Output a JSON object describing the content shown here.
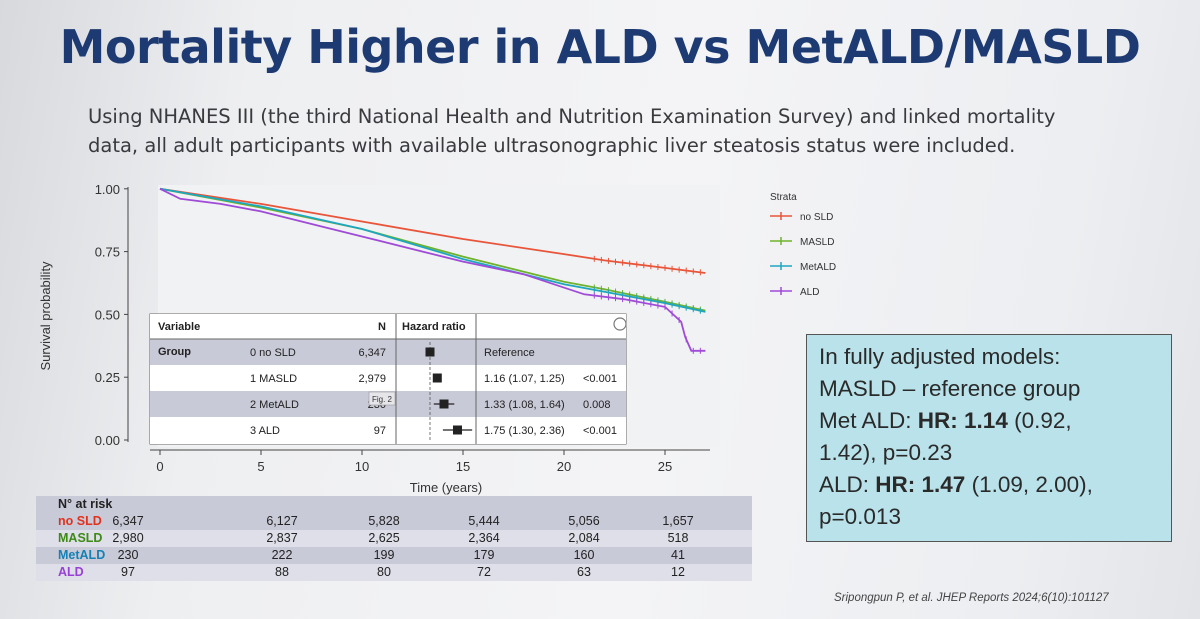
{
  "slide": {
    "title": "Mortality Higher in ALD vs MetALD/MASLD",
    "subtitle_line1": "Using NHANES III (the third National Health and Nutrition Examination Survey) and linked mortality",
    "subtitle_line2": "data, all adult participants with available ultrasonographic liver steatosis status were included.",
    "citation": "Sripongpun P, et al. JHEP Reports 2024;6(10):101127"
  },
  "chart_data": {
    "type": "line",
    "xlabel": "Time (years)",
    "ylabel": "Survival probability",
    "xlim": [
      0,
      28
    ],
    "ylim": [
      0,
      1
    ],
    "x_ticks": [
      "0",
      "5",
      "10",
      "15",
      "20",
      "25"
    ],
    "y_ticks": [
      "0.00",
      "0.25",
      "0.50",
      "0.75",
      "1.00"
    ],
    "legend_title": "Strata",
    "legend_position": "right",
    "series": [
      {
        "name": "no SLD",
        "color": "#e8553a",
        "points": [
          [
            0,
            1.0
          ],
          [
            5,
            0.94
          ],
          [
            10,
            0.87
          ],
          [
            15,
            0.8
          ],
          [
            20,
            0.74
          ],
          [
            22,
            0.715
          ],
          [
            25,
            0.685
          ],
          [
            27,
            0.665
          ]
        ]
      },
      {
        "name": "MASLD",
        "color": "#6fb22d",
        "points": [
          [
            0,
            1.0
          ],
          [
            5,
            0.925
          ],
          [
            10,
            0.84
          ],
          [
            15,
            0.73
          ],
          [
            20,
            0.63
          ],
          [
            22,
            0.6
          ],
          [
            25,
            0.55
          ],
          [
            27,
            0.515
          ]
        ]
      },
      {
        "name": "MetALD",
        "color": "#1fa6bf",
        "points": [
          [
            0,
            1.0
          ],
          [
            5,
            0.93
          ],
          [
            10,
            0.84
          ],
          [
            15,
            0.72
          ],
          [
            20,
            0.62
          ],
          [
            22,
            0.59
          ],
          [
            25,
            0.545
          ],
          [
            27,
            0.51
          ]
        ]
      },
      {
        "name": "ALD",
        "color": "#a04ad8",
        "points": [
          [
            0,
            1.0
          ],
          [
            1,
            0.96
          ],
          [
            3,
            0.94
          ],
          [
            5,
            0.91
          ],
          [
            8,
            0.85
          ],
          [
            10,
            0.81
          ],
          [
            13,
            0.75
          ],
          [
            15,
            0.71
          ],
          [
            18,
            0.66
          ],
          [
            21,
            0.58
          ],
          [
            23,
            0.56
          ],
          [
            25,
            0.53
          ],
          [
            25.8,
            0.47
          ],
          [
            26,
            0.41
          ],
          [
            26.3,
            0.355
          ],
          [
            27,
            0.355
          ]
        ]
      }
    ],
    "hazard_table": {
      "headers": [
        "Variable",
        "N",
        "Hazard ratio"
      ],
      "group_label": "Group",
      "rows": [
        {
          "label": "0 no SLD",
          "n": "6,347",
          "hr": 1.0,
          "lo": 1.0,
          "hi": 1.0,
          "estimate": "Reference",
          "p": ""
        },
        {
          "label": "1 MASLD",
          "n": "2,979",
          "hr": 1.16,
          "lo": 1.07,
          "hi": 1.25,
          "estimate": "1.16 (1.07, 1.25)",
          "p": "<0.001"
        },
        {
          "label": "2 MetALD",
          "n": "230",
          "hr": 1.33,
          "lo": 1.08,
          "hi": 1.64,
          "estimate": "1.33 (1.08, 1.64)",
          "p": "0.008"
        },
        {
          "label": "3 ALD",
          "n": "97",
          "hr": 1.75,
          "lo": 1.3,
          "hi": 2.36,
          "estimate": "1.75 (1.30, 2.36)",
          "p": "<0.001"
        }
      ],
      "overlay_tag": "Fig. 2"
    }
  },
  "risk_table": {
    "title": "N° at risk",
    "rows": [
      {
        "label": "no SLD",
        "color": "#e0321e",
        "values": [
          "6,347",
          "6,127",
          "5,828",
          "5,444",
          "5,056",
          "1,657"
        ]
      },
      {
        "label": "MASLD",
        "color": "#3d8a15",
        "values": [
          "2,980",
          "2,837",
          "2,625",
          "2,364",
          "2,084",
          "518"
        ]
      },
      {
        "label": "MetALD",
        "color": "#1581b5",
        "values": [
          "230",
          "222",
          "199",
          "179",
          "160",
          "41"
        ]
      },
      {
        "label": "ALD",
        "color": "#9a3fd6",
        "values": [
          "97",
          "88",
          "80",
          "72",
          "63",
          "12"
        ]
      }
    ]
  },
  "callout": {
    "line1": "In fully adjusted models:",
    "line2": "MASLD – reference group",
    "line3_a": "Met ALD: ",
    "line3_b": "HR: 1.14",
    "line3_c": " (0.92,",
    "line4": "1.42), p=0.23",
    "line5_a": "ALD: ",
    "line5_b": "HR: 1.47",
    "line5_c": " (1.09, 2.00),",
    "line6": "p=0.013"
  }
}
